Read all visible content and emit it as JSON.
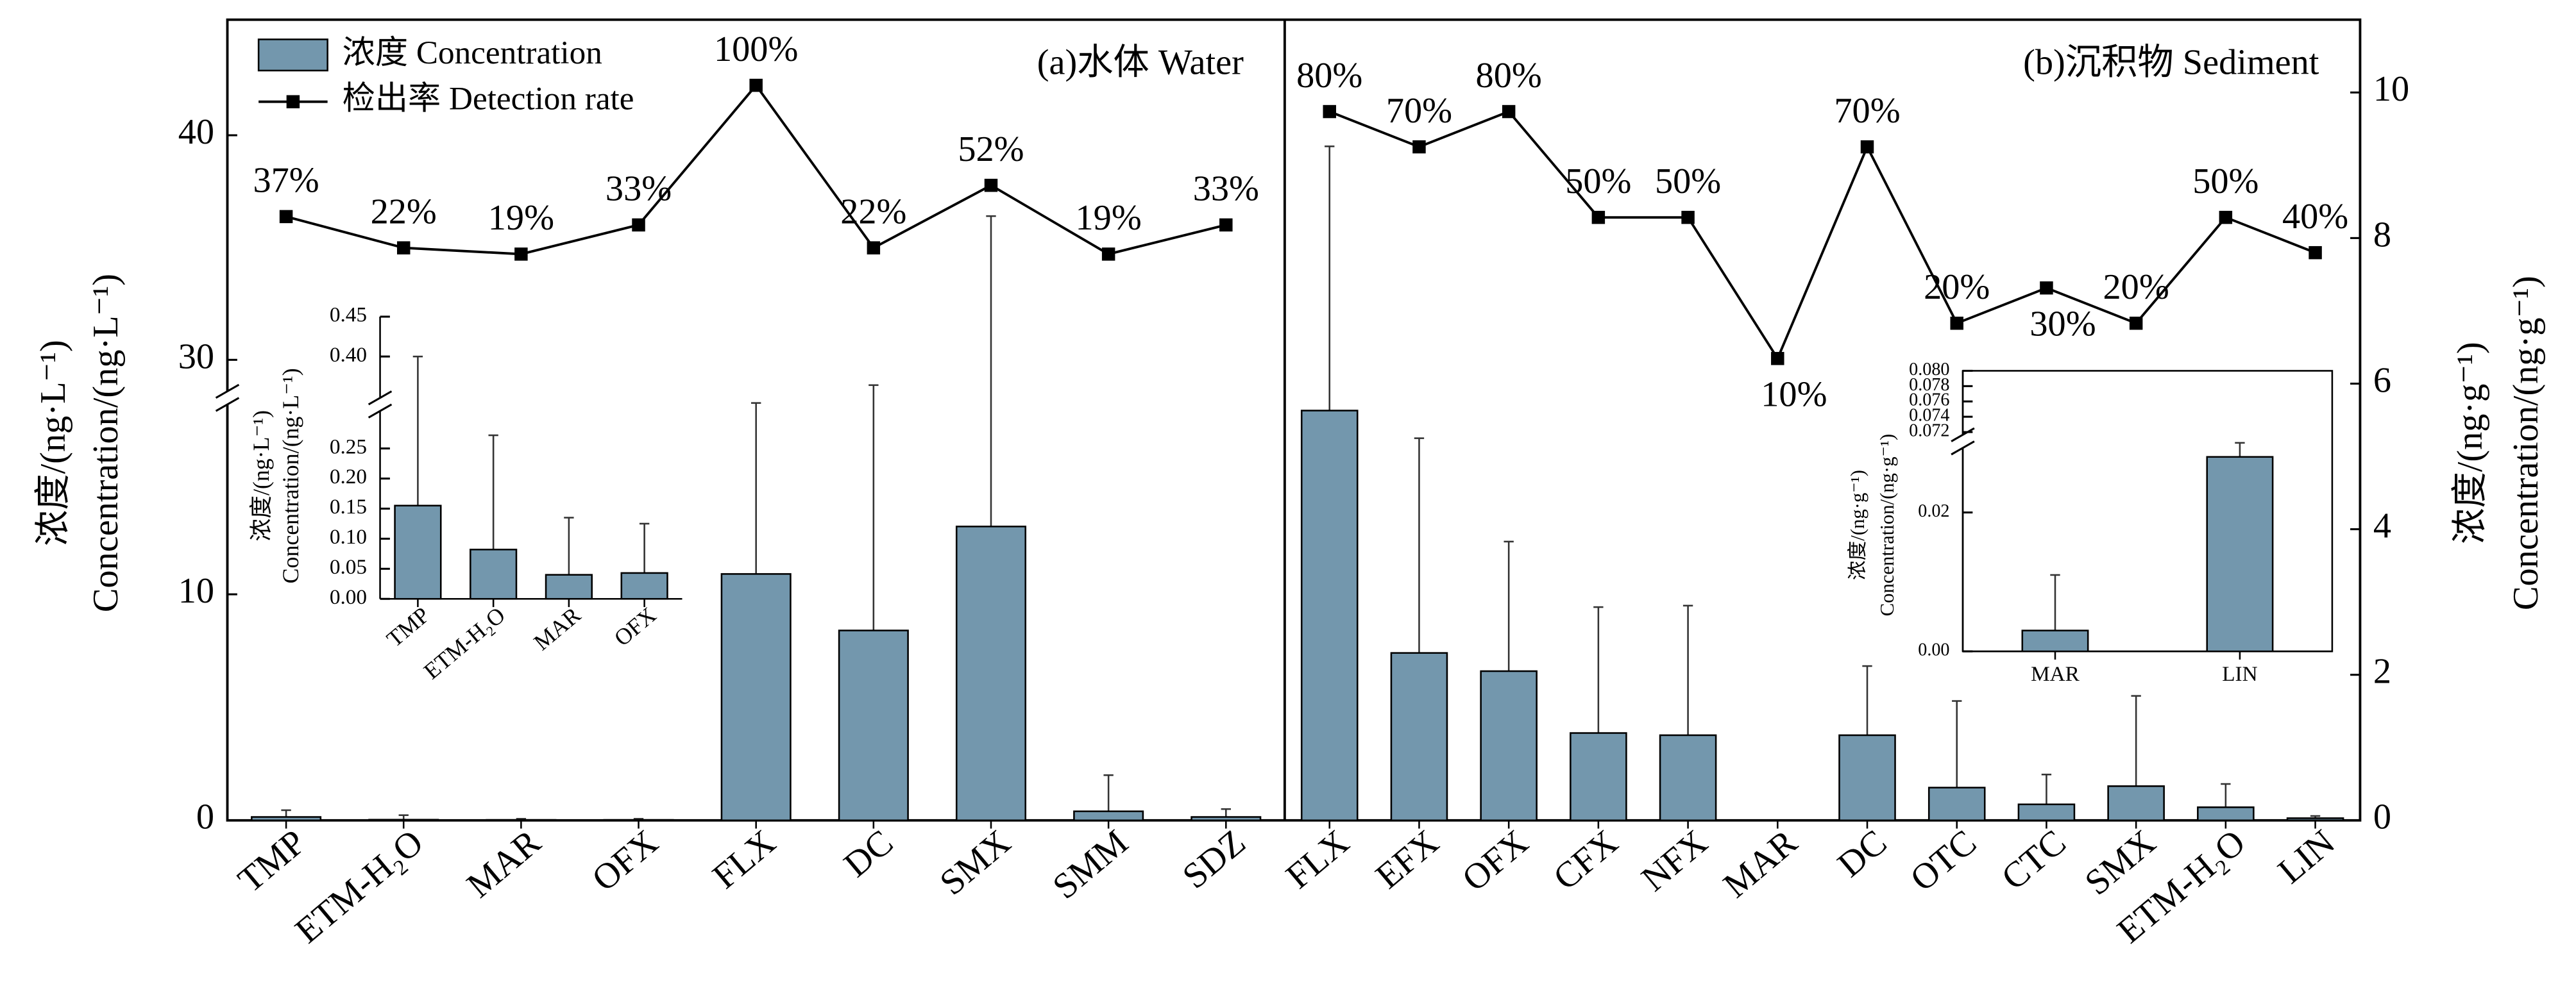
{
  "chart_data": [
    {
      "type": "bar",
      "title": "(a)水体 Water",
      "categories": [
        "TMP",
        "ETM-H₂O",
        "MAR",
        "OFX",
        "FLX",
        "DC",
        "SMX",
        "SMM",
        "SDZ"
      ],
      "ylabel": [
        "浓度/(ng·L⁻¹)",
        "Concentration/(ng·L⁻¹)"
      ],
      "ylim": [
        0,
        45
      ],
      "ybreak": [
        18,
        29
      ],
      "yticks": [
        0,
        10,
        30,
        40
      ],
      "y2lim": [
        0,
        100
      ],
      "series": [
        {
          "name": "浓度 Concentration",
          "color": "#7397ad",
          "values": [
            0.15,
            0.03,
            0.02,
            0.02,
            10.9,
            8.4,
            13.0,
            0.4,
            0.15
          ],
          "errors": [
            0.3,
            0.2,
            0.05,
            0.05,
            10.8,
            19.6,
            23.4,
            1.6,
            0.35
          ]
        },
        {
          "name": "检出率 Detection rate",
          "type": "line",
          "axis": "y2",
          "color": "#000000",
          "values": [
            37,
            22,
            19,
            33,
            100,
            22,
            52,
            19,
            33
          ],
          "value_labels": [
            "37%",
            "22%",
            "19%",
            "33%",
            "100%",
            "22%",
            "52%",
            "19%",
            "33%"
          ]
        }
      ]
    },
    {
      "type": "bar",
      "title": "(b)沉积物 Sediment",
      "categories": [
        "FLX",
        "EFX",
        "OFX",
        "CFX",
        "NFX",
        "MAR",
        "DC",
        "OTC",
        "CTC",
        "SMX",
        "ETM-H₂O",
        "LIN"
      ],
      "ylabel": [
        "浓度/(ng·g⁻¹)",
        "Concentration/(ng·g⁻¹)"
      ],
      "ylim": [
        0,
        11
      ],
      "yticks": [
        0,
        2,
        4,
        6,
        8,
        10
      ],
      "y2lim": [
        0,
        100
      ],
      "series": [
        {
          "color": "#7397ad",
          "values": [
            5.63,
            2.3,
            2.05,
            1.2,
            1.17,
            0,
            1.17,
            0.45,
            0.22,
            0.47,
            0.18,
            0.03
          ],
          "errors": [
            3.63,
            2.95,
            1.78,
            1.73,
            1.78,
            0,
            0.95,
            1.19,
            0.41,
            1.24,
            0.32,
            0.03
          ]
        },
        {
          "type": "line",
          "axis": "y2",
          "color": "#000000",
          "values": [
            80,
            70,
            80,
            50,
            50,
            10,
            70,
            20,
            30,
            20,
            50,
            40
          ],
          "value_labels": [
            "80%",
            "70%",
            "80%",
            "50%",
            "50%",
            "10%",
            "70%",
            "20%",
            "30%",
            "20%",
            "50%",
            "40%"
          ]
        }
      ]
    },
    {
      "type": "bar",
      "categories": [
        "TMP",
        "ETM-H₂O",
        "MAR",
        "OFX"
      ],
      "ylabel": [
        "浓度/(ng·L⁻¹)",
        "Concentration/(ng·L⁻¹)"
      ],
      "ylim": [
        0,
        0.45
      ],
      "ybreak": [
        0.27,
        0.38
      ],
      "yticks": [
        {
          "value": 0,
          "label": "0.00"
        },
        0.05,
        {
          "value": 0.1,
          "label": "0.10"
        },
        0.15,
        {
          "value": 0.2,
          "label": "0.20"
        },
        0.25,
        {
          "value": 0.4,
          "label": "0.40"
        },
        0.45
      ],
      "series": [
        {
          "color": "#7397ad",
          "values": [
            0.155,
            0.082,
            0.04,
            0.043
          ],
          "errors": [
            0.245,
            0.19,
            0.095,
            0.082
          ]
        }
      ]
    },
    {
      "type": "bar",
      "categories": [
        "MAR",
        "LIN"
      ],
      "ylabel": [
        "浓度/(ng·g⁻¹)",
        "Concentration/(ng·g⁻¹)"
      ],
      "ylim": [
        0,
        0.08
      ],
      "ybreak": [
        0.03,
        0.071
      ],
      "yticks": [
        {
          "value": 0,
          "label": "0.00"
        },
        0.02,
        0.072,
        0.074,
        0.076,
        0.078,
        {
          "value": 0.08,
          "label": "0.080"
        }
      ],
      "series": [
        {
          "color": "#7397ad",
          "values": [
            0.003,
            0.028
          ],
          "errors": [
            0.008,
            0.004
          ]
        }
      ]
    }
  ]
}
